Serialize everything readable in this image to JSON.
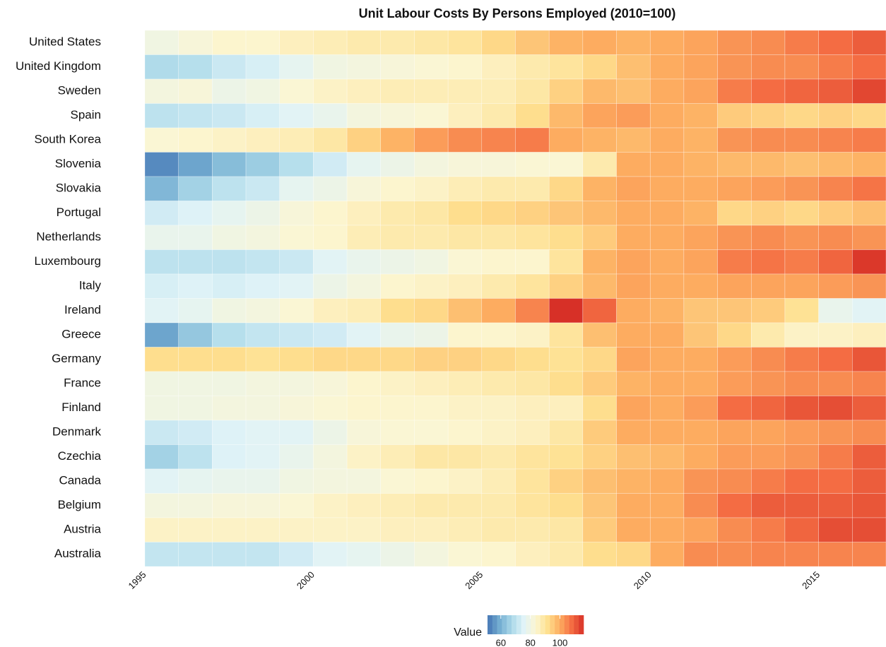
{
  "chart_data": {
    "type": "heatmap",
    "title": "Unit Labour Costs By Persons Employed (2010=100)",
    "x": [
      1995,
      1996,
      1997,
      1998,
      1999,
      2000,
      2001,
      2002,
      2003,
      2004,
      2005,
      2006,
      2007,
      2008,
      2009,
      2010,
      2011,
      2012,
      2013,
      2014,
      2015,
      2016
    ],
    "xlim": [
      1995,
      2017
    ],
    "xticks": [
      1995,
      2000,
      2005,
      2010,
      2015
    ],
    "y": [
      "United States",
      "United Kingdom",
      "Sweden",
      "Spain",
      "South Korea",
      "Slovenia",
      "Slovakia",
      "Portugal",
      "Netherlands",
      "Luxembourg",
      "Italy",
      "Ireland",
      "Greece",
      "Germany",
      "France",
      "Finland",
      "Denmark",
      "Czechia",
      "Canada",
      "Belgium",
      "Austria",
      "Australia"
    ],
    "z": [
      [
        80,
        82,
        84,
        84,
        86,
        87,
        88,
        88,
        89,
        90,
        93,
        96,
        99,
        100,
        99,
        100,
        101,
        103,
        104,
        106,
        108,
        110
      ],
      [
        68,
        69,
        72,
        74,
        77,
        80,
        81,
        82,
        83,
        84,
        86,
        88,
        90,
        93,
        97,
        100,
        101,
        103,
        104,
        104,
        106,
        108
      ],
      [
        81,
        82,
        79,
        80,
        83,
        85,
        86,
        87,
        87,
        87,
        87,
        89,
        94,
        98,
        97,
        100,
        101,
        106,
        108,
        109,
        110,
        113
      ],
      [
        70,
        71,
        72,
        74,
        76,
        78,
        81,
        82,
        83,
        86,
        88,
        92,
        98,
        101,
        102,
        100,
        99,
        95,
        94,
        93,
        94,
        93
      ],
      [
        83,
        84,
        85,
        86,
        87,
        89,
        94,
        99,
        102,
        104,
        105,
        106,
        100,
        99,
        98,
        100,
        99,
        103,
        104,
        104,
        105,
        106
      ],
      [
        54,
        58,
        62,
        65,
        69,
        73,
        77,
        79,
        81,
        82,
        82,
        83,
        83,
        88,
        100,
        100,
        99,
        98,
        98,
        97,
        98,
        99
      ],
      [
        61,
        66,
        70,
        72,
        77,
        79,
        82,
        84,
        85,
        87,
        88,
        88,
        93,
        99,
        101,
        100,
        100,
        101,
        102,
        103,
        105,
        107
      ],
      [
        73,
        75,
        77,
        79,
        82,
        84,
        86,
        88,
        89,
        92,
        93,
        94,
        96,
        98,
        100,
        100,
        99,
        93,
        94,
        93,
        95,
        97
      ],
      [
        78,
        78,
        80,
        81,
        83,
        84,
        87,
        88,
        88,
        89,
        89,
        90,
        92,
        95,
        100,
        100,
        101,
        103,
        104,
        103,
        104,
        103
      ],
      [
        70,
        70,
        70,
        71,
        72,
        76,
        78,
        79,
        80,
        83,
        84,
        84,
        90,
        99,
        101,
        100,
        101,
        106,
        107,
        106,
        109,
        115
      ],
      [
        74,
        75,
        74,
        75,
        76,
        79,
        81,
        84,
        85,
        86,
        88,
        90,
        94,
        98,
        101,
        100,
        100,
        101,
        101,
        101,
        102,
        103
      ],
      [
        76,
        77,
        80,
        81,
        83,
        86,
        87,
        92,
        93,
        97,
        100,
        105,
        116,
        109,
        100,
        99,
        96,
        96,
        95,
        91,
        78,
        76
      ],
      [
        58,
        64,
        69,
        71,
        72,
        73,
        76,
        78,
        79,
        84,
        84,
        85,
        90,
        97,
        100,
        100,
        96,
        93,
        88,
        85,
        85,
        86
      ],
      [
        92,
        92,
        92,
        91,
        92,
        93,
        93,
        93,
        94,
        94,
        93,
        92,
        91,
        93,
        101,
        100,
        100,
        102,
        104,
        106,
        108,
        111
      ],
      [
        80,
        80,
        80,
        81,
        81,
        82,
        84,
        85,
        86,
        87,
        88,
        89,
        92,
        95,
        99,
        100,
        100,
        102,
        103,
        104,
        104,
        105
      ],
      [
        80,
        80,
        81,
        81,
        82,
        83,
        84,
        84,
        84,
        85,
        85,
        86,
        86,
        92,
        101,
        100,
        102,
        108,
        109,
        111,
        112,
        110
      ],
      [
        72,
        73,
        75,
        76,
        76,
        79,
        82,
        83,
        83,
        84,
        85,
        86,
        89,
        95,
        100,
        100,
        100,
        101,
        101,
        102,
        103,
        104
      ],
      [
        66,
        70,
        75,
        76,
        78,
        81,
        85,
        87,
        89,
        89,
        88,
        90,
        91,
        94,
        97,
        98,
        100,
        102,
        102,
        103,
        106,
        110
      ],
      [
        76,
        77,
        78,
        78,
        80,
        81,
        81,
        83,
        84,
        85,
        87,
        90,
        94,
        97,
        99,
        100,
        103,
        104,
        106,
        108,
        108,
        110
      ],
      [
        81,
        81,
        82,
        82,
        83,
        85,
        86,
        87,
        88,
        88,
        88,
        90,
        92,
        96,
        100,
        100,
        104,
        108,
        110,
        110,
        110,
        111
      ],
      [
        85,
        85,
        85,
        85,
        85,
        85,
        85,
        86,
        86,
        87,
        88,
        88,
        89,
        95,
        100,
        100,
        101,
        104,
        106,
        109,
        112,
        112
      ],
      [
        71,
        71,
        71,
        71,
        73,
        76,
        77,
        79,
        81,
        83,
        84,
        86,
        88,
        92,
        93,
        100,
        104,
        104,
        105,
        105,
        105,
        105
      ]
    ],
    "zlim": [
      51,
      116
    ],
    "colors": [
      "#4575b4",
      "#74add1",
      "#abd9e9",
      "#e0f3f8",
      "#fcf6d2",
      "#fee090",
      "#fdae61",
      "#f46d43",
      "#d73027"
    ],
    "legend_title": "Value",
    "legend_ticks": [
      60,
      80,
      100
    ]
  }
}
